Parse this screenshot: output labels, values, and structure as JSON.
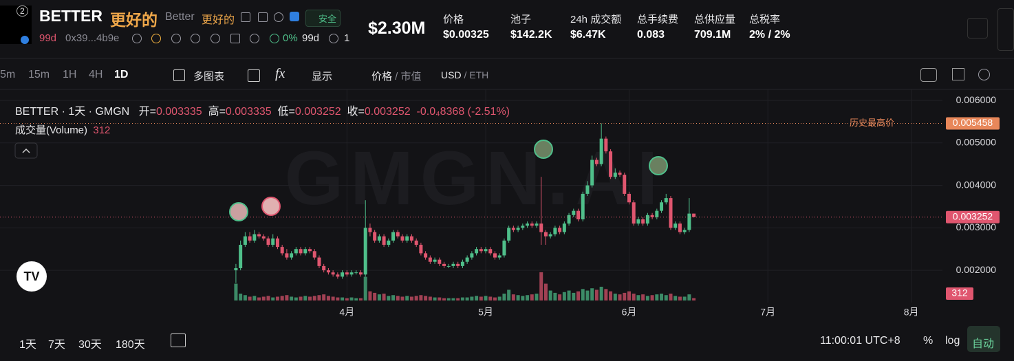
{
  "header": {
    "badge": "2",
    "name": "BETTER",
    "name_cn": "更好的",
    "alias": "Better",
    "alias_cn": "更好的",
    "safety": "安全",
    "age": "99d",
    "address": "0x39...4b9e",
    "holder_pct": "0%",
    "holder_days": "99d",
    "watchers": "1",
    "market_cap": "$2.30M",
    "stats": [
      {
        "label": "价格",
        "value": "$0.00325"
      },
      {
        "label": "池子",
        "value": "$142.2K"
      },
      {
        "label": "24h 成交额",
        "value": "$6.47K"
      },
      {
        "label": "总手续费",
        "value": "0.083"
      },
      {
        "label": "总供应量",
        "value": "709.1M"
      },
      {
        "label": "总税率",
        "value": "2% / 2%"
      }
    ]
  },
  "toolbar": {
    "intervals": [
      "5m",
      "15m",
      "1H",
      "4H",
      "1D"
    ],
    "multi_chart": "多图表",
    "display": "显示",
    "price": "价格",
    "mcap": "市值",
    "usd": "USD",
    "eth": "ETH"
  },
  "legend": {
    "symbol": "BETTER · 1天 · GMGN",
    "open_label": "开=",
    "open": "0.003335",
    "high_label": "高=",
    "high": "0.003335",
    "low_label": "低=",
    "low": "0.003252",
    "close_label": "收=",
    "close": "0.003252",
    "change": "-0.0₄8368 (-2.51%)",
    "volume_label": "成交量(Volume)",
    "volume": "312"
  },
  "watermark": "GMGN.AI",
  "chart_data": {
    "type": "candlestick",
    "xlim": [
      -51,
      152
    ],
    "xticks": [
      {
        "value": 24,
        "label": "4月"
      },
      {
        "value": 54,
        "label": "5月"
      },
      {
        "value": 85,
        "label": "6月"
      },
      {
        "value": 115,
        "label": "7月"
      },
      {
        "value": 146,
        "label": "8月"
      }
    ],
    "ylim": [
      0.00124,
      0.00626
    ],
    "yticks": [
      {
        "value": 0.002,
        "label": "0.002000"
      },
      {
        "value": 0.003,
        "label": "0.003000"
      },
      {
        "value": 0.004,
        "label": "0.004000"
      },
      {
        "value": 0.005,
        "label": "0.005000"
      },
      {
        "value": 0.006,
        "label": "0.006000"
      }
    ],
    "grid": true,
    "up_color": "#4fbf8a",
    "down_color": "#e0566f",
    "ath": {
      "label": "历史最高价",
      "price": {
        "value": 0.005458,
        "label": "0.005458"
      },
      "color": "#e8875a"
    },
    "current": {
      "value": 0.003252,
      "label": "0.003252"
    },
    "volume_lim": [
      0,
      4500
    ],
    "volume_tag": {
      "value": 312,
      "label": "312"
    },
    "open": [
      0.002,
      0.00205,
      0.0026,
      0.0028,
      0.0027,
      0.00285,
      0.0028,
      0.00275,
      0.0026,
      0.00275,
      0.00255,
      0.0024,
      0.0023,
      0.0024,
      0.0025,
      0.0024,
      0.0025,
      0.00245,
      0.0023,
      0.0021,
      0.002,
      0.00195,
      0.0019,
      0.00185,
      0.00195,
      0.0019,
      0.00195,
      0.00195,
      0.0019,
      0.003,
      0.0029,
      0.0027,
      0.0028,
      0.0026,
      0.0027,
      0.0029,
      0.0028,
      0.0027,
      0.0028,
      0.0027,
      0.0026,
      0.0024,
      0.0023,
      0.0022,
      0.00225,
      0.00215,
      0.0021,
      0.0021,
      0.00215,
      0.0021,
      0.0022,
      0.0023,
      0.0024,
      0.0025,
      0.00245,
      0.0025,
      0.0024,
      0.0023,
      0.00235,
      0.0027,
      0.003,
      0.00295,
      0.003,
      0.00305,
      0.0031,
      0.00305,
      0.0031,
      0.0029,
      0.0028,
      0.00285,
      0.003,
      0.0029,
      0.0031,
      0.0033,
      0.0034,
      0.0032,
      0.0038,
      0.004,
      0.0046,
      0.0045,
      0.0051,
      0.0048,
      0.0042,
      0.0043,
      0.00425,
      0.0038,
      0.0036,
      0.0031,
      0.0032,
      0.0031,
      0.0033,
      0.00325,
      0.0034,
      0.0036,
      0.0037,
      0.003,
      0.0031,
      0.0029,
      0.00295,
      0.003335
    ],
    "close": [
      0.00205,
      0.0026,
      0.0028,
      0.0027,
      0.00285,
      0.0028,
      0.00275,
      0.0026,
      0.00275,
      0.00255,
      0.0024,
      0.0023,
      0.0024,
      0.0025,
      0.0024,
      0.0025,
      0.00245,
      0.0023,
      0.0021,
      0.002,
      0.00195,
      0.0019,
      0.00185,
      0.00195,
      0.0019,
      0.00195,
      0.00195,
      0.0019,
      0.003,
      0.0029,
      0.0027,
      0.0028,
      0.0026,
      0.0027,
      0.0029,
      0.0028,
      0.0027,
      0.0028,
      0.0027,
      0.0026,
      0.0024,
      0.0023,
      0.0022,
      0.00225,
      0.00215,
      0.0021,
      0.0021,
      0.00215,
      0.0021,
      0.0022,
      0.0023,
      0.0024,
      0.0025,
      0.00245,
      0.0025,
      0.0024,
      0.0023,
      0.00235,
      0.0027,
      0.003,
      0.00295,
      0.003,
      0.00305,
      0.0031,
      0.00305,
      0.0031,
      0.0029,
      0.0028,
      0.00285,
      0.003,
      0.0029,
      0.0031,
      0.0033,
      0.0034,
      0.0032,
      0.0038,
      0.004,
      0.0046,
      0.0045,
      0.0051,
      0.0048,
      0.0042,
      0.0043,
      0.00425,
      0.0038,
      0.0036,
      0.0031,
      0.0032,
      0.0031,
      0.0033,
      0.00325,
      0.0034,
      0.0036,
      0.0037,
      0.003,
      0.0031,
      0.0029,
      0.00295,
      0.003335,
      0.003252
    ],
    "high": [
      0.00215,
      0.0027,
      0.0029,
      0.0029,
      0.00295,
      0.0029,
      0.00285,
      0.0028,
      0.00285,
      0.0028,
      0.0026,
      0.0025,
      0.00245,
      0.00255,
      0.00255,
      0.00255,
      0.00255,
      0.0025,
      0.00235,
      0.00215,
      0.00205,
      0.002,
      0.00195,
      0.002,
      0.002,
      0.002,
      0.002,
      0.002,
      0.00365,
      0.0031,
      0.00295,
      0.00285,
      0.00285,
      0.00275,
      0.00295,
      0.00295,
      0.00285,
      0.00285,
      0.00285,
      0.00275,
      0.00265,
      0.00245,
      0.00235,
      0.0023,
      0.0023,
      0.0022,
      0.00215,
      0.0022,
      0.0022,
      0.00225,
      0.00235,
      0.00245,
      0.00255,
      0.00255,
      0.00255,
      0.00255,
      0.00245,
      0.0024,
      0.00275,
      0.00305,
      0.00305,
      0.00305,
      0.0031,
      0.00315,
      0.00315,
      0.00315,
      0.0042,
      0.00295,
      0.0029,
      0.00305,
      0.00305,
      0.00315,
      0.00335,
      0.00345,
      0.00345,
      0.00385,
      0.0041,
      0.0047,
      0.00465,
      0.005458,
      0.00515,
      0.00485,
      0.0044,
      0.00435,
      0.0043,
      0.00385,
      0.00365,
      0.00325,
      0.00325,
      0.00335,
      0.00335,
      0.00345,
      0.00365,
      0.0038,
      0.00375,
      0.00315,
      0.00315,
      0.003,
      0.0037,
      0.003335
    ],
    "low": [
      0.0017,
      0.002,
      0.00255,
      0.00265,
      0.00265,
      0.00275,
      0.0027,
      0.00255,
      0.00255,
      0.0025,
      0.00235,
      0.00225,
      0.00225,
      0.00235,
      0.00235,
      0.00235,
      0.0024,
      0.00225,
      0.00205,
      0.00195,
      0.0019,
      0.00185,
      0.0018,
      0.0018,
      0.00185,
      0.00185,
      0.0019,
      0.00185,
      0.00185,
      0.0028,
      0.00265,
      0.00265,
      0.00255,
      0.00255,
      0.00265,
      0.00275,
      0.00265,
      0.00265,
      0.00265,
      0.00255,
      0.00235,
      0.00225,
      0.00215,
      0.00215,
      0.0021,
      0.00205,
      0.00205,
      0.00205,
      0.00205,
      0.00205,
      0.00215,
      0.00225,
      0.00235,
      0.0024,
      0.0024,
      0.00235,
      0.00225,
      0.00225,
      0.0023,
      0.00265,
      0.0029,
      0.0029,
      0.00295,
      0.003,
      0.003,
      0.003,
      0.0026,
      0.0026,
      0.00275,
      0.0028,
      0.00285,
      0.00285,
      0.00305,
      0.00325,
      0.00315,
      0.00315,
      0.00375,
      0.00395,
      0.00445,
      0.00445,
      0.00475,
      0.00415,
      0.00415,
      0.0042,
      0.00375,
      0.00355,
      0.00305,
      0.00305,
      0.00305,
      0.00305,
      0.0032,
      0.0032,
      0.00335,
      0.00355,
      0.00295,
      0.00295,
      0.00285,
      0.00285,
      0.0029,
      0.003252
    ],
    "volume": [
      2200,
      900,
      700,
      500,
      600,
      400,
      500,
      600,
      400,
      500,
      600,
      700,
      500,
      400,
      500,
      600,
      500,
      600,
      700,
      800,
      600,
      500,
      400,
      400,
      300,
      400,
      300,
      300,
      3100,
      1200,
      1000,
      800,
      900,
      600,
      700,
      600,
      500,
      600,
      500,
      600,
      700,
      600,
      500,
      400,
      400,
      300,
      300,
      300,
      300,
      400,
      400,
      500,
      600,
      500,
      600,
      500,
      400,
      500,
      900,
      1400,
      800,
      700,
      600,
      700,
      800,
      900,
      3700,
      2200,
      1300,
      1000,
      800,
      1100,
      1300,
      1000,
      1200,
      1500,
      1300,
      1600,
      1400,
      1800,
      1500,
      1200,
      900,
      800,
      1000,
      1200,
      900,
      700,
      800,
      600,
      700,
      800,
      900,
      700,
      900,
      600,
      500,
      500,
      800,
      312
    ]
  },
  "footer": {
    "ranges": [
      "1天",
      "7天",
      "30天",
      "180天"
    ],
    "time": "11:00:01 UTC+8",
    "percent": "%",
    "log": "log",
    "auto": "自动"
  }
}
